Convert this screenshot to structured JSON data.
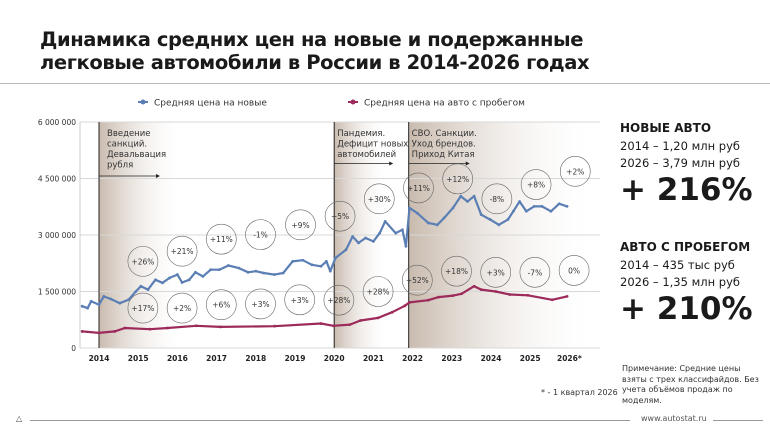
{
  "title_line1": "Динамика средних цен на новые и подержанные",
  "title_line2": "легковые автомобили в России в 2014-2026 годах",
  "right_panel": {
    "new": {
      "heading": "НОВЫЕ АВТО",
      "line1": "2014 – 1,20 млн руб",
      "line2": "2026 – 3,79 млн руб",
      "change": "+ 216%"
    },
    "used": {
      "heading": "АВТО С ПРОБЕГОМ",
      "line1": "2014 – 435 тыс руб",
      "line2": "2026 – 1,35 млн руб",
      "change": "+ 210%"
    }
  },
  "note": "Примечание: Средние цены взяты с трех классифайдов. Без учета объёмов продаж по моделям.",
  "footnote": "* -  1 квартал 2026",
  "url": "www.autostat.ru",
  "colors": {
    "new": "#5b7fb5",
    "used": "#9c2a5a",
    "shade": "#c9b9ab"
  },
  "chart_data": {
    "type": "line",
    "xlim": [
      2013.55,
      2026.5
    ],
    "ylim": [
      0,
      6000000
    ],
    "yticks": [
      0,
      1500000,
      3000000,
      4500000,
      6000000
    ],
    "ytick_labels": [
      "0",
      "1 500 000",
      "3 000 000",
      "4 500 000",
      "6 000 000"
    ],
    "xtick_labels": [
      "2014",
      "2015",
      "2016",
      "2017",
      "2018",
      "2019",
      "2020",
      "2021",
      "2022",
      "2023",
      "2024",
      "2025",
      "2026*"
    ],
    "grid": "horizontal",
    "legend": "top",
    "series": [
      {
        "name": "Средняя цена на новые",
        "color": "#5b7fb5",
        "points": [
          [
            2013.57,
            1110000
          ],
          [
            2013.71,
            1060000
          ],
          [
            2013.8,
            1240000
          ],
          [
            2014.0,
            1150000
          ],
          [
            2014.12,
            1370000
          ],
          [
            2014.3,
            1300000
          ],
          [
            2014.53,
            1190000
          ],
          [
            2014.75,
            1280000
          ],
          [
            2014.94,
            1500000
          ],
          [
            2015.07,
            1640000
          ],
          [
            2015.25,
            1550000
          ],
          [
            2015.44,
            1810000
          ],
          [
            2015.62,
            1730000
          ],
          [
            2015.8,
            1860000
          ],
          [
            2016.0,
            1950000
          ],
          [
            2016.12,
            1740000
          ],
          [
            2016.3,
            1810000
          ],
          [
            2016.46,
            2010000
          ],
          [
            2016.65,
            1900000
          ],
          [
            2016.85,
            2080000
          ],
          [
            2017.07,
            2080000
          ],
          [
            2017.3,
            2190000
          ],
          [
            2017.57,
            2120000
          ],
          [
            2017.8,
            2010000
          ],
          [
            2018.0,
            2040000
          ],
          [
            2018.2,
            1990000
          ],
          [
            2018.48,
            1950000
          ],
          [
            2018.7,
            1990000
          ],
          [
            2018.94,
            2300000
          ],
          [
            2019.2,
            2330000
          ],
          [
            2019.43,
            2210000
          ],
          [
            2019.66,
            2170000
          ],
          [
            2019.8,
            2300000
          ],
          [
            2019.9,
            2040000
          ],
          [
            2020.03,
            2390000
          ],
          [
            2020.3,
            2610000
          ],
          [
            2020.47,
            2960000
          ],
          [
            2020.62,
            2790000
          ],
          [
            2020.8,
            2920000
          ],
          [
            2021.0,
            2830000
          ],
          [
            2021.16,
            3050000
          ],
          [
            2021.3,
            3360000
          ],
          [
            2021.57,
            3050000
          ],
          [
            2021.74,
            3140000
          ],
          [
            2021.83,
            2700000
          ],
          [
            2021.92,
            3720000
          ],
          [
            2022.12,
            3580000
          ],
          [
            2022.4,
            3320000
          ],
          [
            2022.63,
            3270000
          ],
          [
            2022.8,
            3450000
          ],
          [
            2023.03,
            3720000
          ],
          [
            2023.23,
            4030000
          ],
          [
            2023.4,
            3890000
          ],
          [
            2023.57,
            4030000
          ],
          [
            2023.75,
            3540000
          ],
          [
            2023.98,
            3410000
          ],
          [
            2024.2,
            3270000
          ],
          [
            2024.43,
            3410000
          ],
          [
            2024.57,
            3630000
          ],
          [
            2024.73,
            3890000
          ],
          [
            2024.9,
            3630000
          ],
          [
            2025.1,
            3760000
          ],
          [
            2025.3,
            3760000
          ],
          [
            2025.53,
            3630000
          ],
          [
            2025.74,
            3830000
          ],
          [
            2025.94,
            3760000
          ]
        ]
      },
      {
        "name": "Средняя  цена на авто с пробегом",
        "color": "#9c2a5a",
        "points": [
          [
            2013.57,
            440000
          ],
          [
            2014.0,
            400000
          ],
          [
            2014.4,
            440000
          ],
          [
            2014.66,
            530000
          ],
          [
            2015.3,
            500000
          ],
          [
            2015.75,
            530000
          ],
          [
            2016.48,
            590000
          ],
          [
            2017.1,
            560000
          ],
          [
            2018.48,
            580000
          ],
          [
            2019.66,
            650000
          ],
          [
            2019.98,
            590000
          ],
          [
            2020.4,
            620000
          ],
          [
            2020.67,
            730000
          ],
          [
            2021.12,
            800000
          ],
          [
            2021.48,
            950000
          ],
          [
            2021.8,
            1120000
          ],
          [
            2021.92,
            1210000
          ],
          [
            2022.4,
            1270000
          ],
          [
            2022.66,
            1350000
          ],
          [
            2023.03,
            1390000
          ],
          [
            2023.25,
            1440000
          ],
          [
            2023.57,
            1640000
          ],
          [
            2023.75,
            1550000
          ],
          [
            2024.12,
            1500000
          ],
          [
            2024.48,
            1420000
          ],
          [
            2024.94,
            1400000
          ],
          [
            2025.56,
            1280000
          ],
          [
            2025.94,
            1370000
          ]
        ]
      }
    ],
    "events": [
      {
        "x": 2014.0,
        "text": [
          "Введение",
          "санкций.",
          "Девальвация",
          "рубля"
        ]
      },
      {
        "x": 2020.0,
        "text": [
          "Пандемия.",
          "Дефицит новых",
          "автомобилей"
        ]
      },
      {
        "x": 2021.9,
        "text": [
          "СВО. Санкции.",
          "Уход брендов.",
          "Приход Китая"
        ]
      }
    ],
    "annotations_new": [
      {
        "x": 2015.12,
        "y": 2300000,
        "label": "+26%"
      },
      {
        "x": 2016.12,
        "y": 2570000,
        "label": "+21%"
      },
      {
        "x": 2017.12,
        "y": 2890000,
        "label": "+11%"
      },
      {
        "x": 2018.12,
        "y": 3010000,
        "label": "-1%"
      },
      {
        "x": 2019.14,
        "y": 3270000,
        "label": "+9%"
      },
      {
        "x": 2020.15,
        "y": 3500000,
        "label": "+5%"
      },
      {
        "x": 2021.15,
        "y": 3960000,
        "label": "+30%"
      },
      {
        "x": 2022.15,
        "y": 4250000,
        "label": "+11%"
      },
      {
        "x": 2023.15,
        "y": 4490000,
        "label": "+12%"
      },
      {
        "x": 2024.15,
        "y": 3960000,
        "label": "-8%"
      },
      {
        "x": 2025.15,
        "y": 4340000,
        "label": "+8%"
      },
      {
        "x": 2026.15,
        "y": 4690000,
        "label": "+2%"
      }
    ],
    "annotations_used": [
      {
        "x": 2015.12,
        "y": 1060000,
        "label": "+17%"
      },
      {
        "x": 2016.12,
        "y": 1060000,
        "label": "+2%"
      },
      {
        "x": 2017.12,
        "y": 1150000,
        "label": "+6%"
      },
      {
        "x": 2018.12,
        "y": 1170000,
        "label": "+3%"
      },
      {
        "x": 2019.12,
        "y": 1280000,
        "label": "+3%"
      },
      {
        "x": 2020.12,
        "y": 1270000,
        "label": "+28%"
      },
      {
        "x": 2021.12,
        "y": 1500000,
        "label": "+28%"
      },
      {
        "x": 2022.12,
        "y": 1800000,
        "label": "+52%"
      },
      {
        "x": 2023.12,
        "y": 2040000,
        "label": "+18%"
      },
      {
        "x": 2024.12,
        "y": 2010000,
        "label": "+3%"
      },
      {
        "x": 2025.12,
        "y": 2010000,
        "label": "-7%"
      },
      {
        "x": 2026.12,
        "y": 2060000,
        "label": "0%"
      }
    ]
  }
}
